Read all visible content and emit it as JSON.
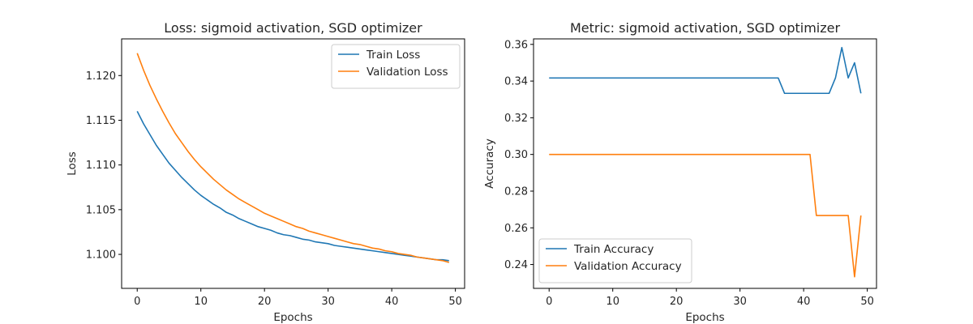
{
  "chart_data": [
    {
      "type": "line",
      "title": "Loss: sigmoid activation, SGD optimizer",
      "xlabel": "Epochs",
      "ylabel": "Loss",
      "xlim": [
        -2.45,
        51.45
      ],
      "ylim": [
        1.0962,
        1.1241
      ],
      "xticks": [
        0,
        10,
        20,
        30,
        40,
        50
      ],
      "yticks": [
        1.1,
        1.105,
        1.11,
        1.115,
        1.12
      ],
      "ytick_labels": [
        "1.100",
        "1.105",
        "1.110",
        "1.115",
        "1.120"
      ],
      "grid": false,
      "legend": "top-right",
      "x": [
        0,
        1,
        2,
        3,
        4,
        5,
        6,
        7,
        8,
        9,
        10,
        11,
        12,
        13,
        14,
        15,
        16,
        17,
        18,
        19,
        20,
        21,
        22,
        23,
        24,
        25,
        26,
        27,
        28,
        29,
        30,
        31,
        32,
        33,
        34,
        35,
        36,
        37,
        38,
        39,
        40,
        41,
        42,
        43,
        44,
        45,
        46,
        47,
        48,
        49
      ],
      "series": [
        {
          "name": "Train Loss",
          "color": "#1f77b4",
          "values": [
            1.116,
            1.1146,
            1.1134,
            1.1122,
            1.1112,
            1.1102,
            1.1094,
            1.1086,
            1.1079,
            1.1072,
            1.1066,
            1.1061,
            1.1056,
            1.1052,
            1.1047,
            1.1044,
            1.104,
            1.1037,
            1.1034,
            1.1031,
            1.1029,
            1.1027,
            1.1024,
            1.1022,
            1.1021,
            1.1019,
            1.1017,
            1.1016,
            1.1014,
            1.1013,
            1.1012,
            1.101,
            1.1009,
            1.1008,
            1.1007,
            1.1006,
            1.1005,
            1.1004,
            1.1003,
            1.1002,
            1.1001,
            1.1,
            1.0999,
            1.0998,
            1.0997,
            1.0996,
            1.0995,
            1.0994,
            1.0994,
            1.0993
          ]
        },
        {
          "name": "Validation Loss",
          "color": "#ff7f0e",
          "values": [
            1.1225,
            1.1206,
            1.1189,
            1.1174,
            1.116,
            1.1147,
            1.1135,
            1.1125,
            1.1115,
            1.1106,
            1.1098,
            1.1091,
            1.1084,
            1.1078,
            1.1072,
            1.1067,
            1.1062,
            1.1058,
            1.1054,
            1.105,
            1.1046,
            1.1043,
            1.104,
            1.1037,
            1.1034,
            1.1031,
            1.1029,
            1.1026,
            1.1024,
            1.1022,
            1.102,
            1.1018,
            1.1016,
            1.1014,
            1.1012,
            1.1011,
            1.1009,
            1.1007,
            1.1006,
            1.1004,
            1.1003,
            1.1001,
            1.1,
            1.0999,
            1.0997,
            1.0996,
            1.0995,
            1.0994,
            1.0993,
            1.0991
          ]
        }
      ]
    },
    {
      "type": "line",
      "title": "Metric: sigmoid activation, SGD optimizer",
      "xlabel": "Epochs",
      "ylabel": "Accuracy",
      "xlim": [
        -2.45,
        51.45
      ],
      "ylim": [
        0.227,
        0.363
      ],
      "xticks": [
        0,
        10,
        20,
        30,
        40,
        50
      ],
      "yticks": [
        0.24,
        0.26,
        0.28,
        0.3,
        0.32,
        0.34,
        0.36
      ],
      "ytick_labels": [
        "0.24",
        "0.26",
        "0.28",
        "0.30",
        "0.32",
        "0.34",
        "0.36"
      ],
      "grid": false,
      "legend": "bottom-left",
      "x": [
        0,
        1,
        2,
        3,
        4,
        5,
        6,
        7,
        8,
        9,
        10,
        11,
        12,
        13,
        14,
        15,
        16,
        17,
        18,
        19,
        20,
        21,
        22,
        23,
        24,
        25,
        26,
        27,
        28,
        29,
        30,
        31,
        32,
        33,
        34,
        35,
        36,
        37,
        38,
        39,
        40,
        41,
        42,
        43,
        44,
        45,
        46,
        47,
        48,
        49
      ],
      "series": [
        {
          "name": "Train Accuracy",
          "color": "#1f77b4",
          "values": [
            0.3417,
            0.3417,
            0.3417,
            0.3417,
            0.3417,
            0.3417,
            0.3417,
            0.3417,
            0.3417,
            0.3417,
            0.3417,
            0.3417,
            0.3417,
            0.3417,
            0.3417,
            0.3417,
            0.3417,
            0.3417,
            0.3417,
            0.3417,
            0.3417,
            0.3417,
            0.3417,
            0.3417,
            0.3417,
            0.3417,
            0.3417,
            0.3417,
            0.3417,
            0.3417,
            0.3417,
            0.3417,
            0.3417,
            0.3417,
            0.3417,
            0.3417,
            0.3417,
            0.3333,
            0.3333,
            0.3333,
            0.3333,
            0.3333,
            0.3333,
            0.3333,
            0.3333,
            0.3417,
            0.3583,
            0.3417,
            0.35,
            0.3333
          ]
        },
        {
          "name": "Validation Accuracy",
          "color": "#ff7f0e",
          "values": [
            0.3,
            0.3,
            0.3,
            0.3,
            0.3,
            0.3,
            0.3,
            0.3,
            0.3,
            0.3,
            0.3,
            0.3,
            0.3,
            0.3,
            0.3,
            0.3,
            0.3,
            0.3,
            0.3,
            0.3,
            0.3,
            0.3,
            0.3,
            0.3,
            0.3,
            0.3,
            0.3,
            0.3,
            0.3,
            0.3,
            0.3,
            0.3,
            0.3,
            0.3,
            0.3,
            0.3,
            0.3,
            0.3,
            0.3,
            0.3,
            0.3,
            0.3,
            0.2667,
            0.2667,
            0.2667,
            0.2667,
            0.2667,
            0.2667,
            0.2333,
            0.2667
          ]
        }
      ]
    }
  ]
}
